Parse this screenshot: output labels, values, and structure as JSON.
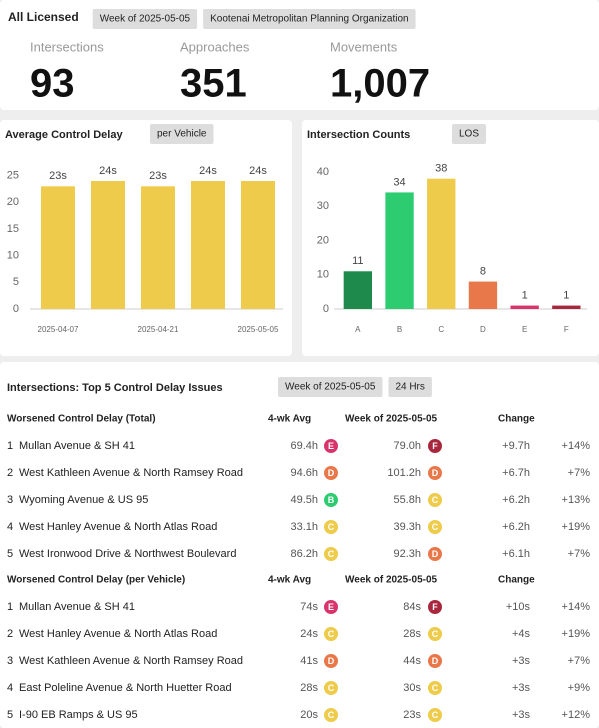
{
  "header": {
    "title": "All Licensed",
    "tags": [
      "Week of 2025-05-05",
      "Kootenai Metropolitan Planning Organization"
    ]
  },
  "kpis": [
    {
      "label": "Intersections",
      "value": "93"
    },
    {
      "label": "Approaches",
      "value": "351"
    },
    {
      "label": "Movements",
      "value": "1,007"
    }
  ],
  "chart_data": [
    {
      "type": "bar",
      "title": "Average Control Delay",
      "tag": "per Vehicle",
      "categories": [
        "2025-04-07",
        null,
        "2025-04-21",
        null,
        "2025-05-05"
      ],
      "values": [
        23,
        24,
        23,
        24,
        24
      ],
      "value_labels": [
        "23s",
        "24s",
        "23s",
        "24s",
        "24s"
      ],
      "colors": [
        "#eecb4a",
        "#eecb4a",
        "#eecb4a",
        "#eecb4a",
        "#eecb4a"
      ],
      "ylim": [
        0,
        27
      ],
      "yticks": [
        0,
        5,
        10,
        15,
        20,
        25
      ]
    },
    {
      "type": "bar",
      "title": "Intersection Counts",
      "tag": "LOS",
      "categories": [
        "A",
        "B",
        "C",
        "D",
        "E",
        "F"
      ],
      "values": [
        11,
        34,
        38,
        8,
        1,
        1
      ],
      "colors": [
        "#1e8a4c",
        "#2ecc71",
        "#eecb4a",
        "#e8784a",
        "#d9336b",
        "#a8273c"
      ],
      "ylim": [
        0,
        42
      ],
      "yticks": [
        0,
        10,
        20,
        30,
        40
      ]
    }
  ],
  "table": {
    "title": "Intersections: Top 5 Control Delay Issues",
    "tags": [
      "Week of 2025-05-05",
      "24 Hrs"
    ],
    "grade_colors": {
      "A": "#1e8a4c",
      "B": "#2ecc71",
      "C": "#eecb4a",
      "D": "#e8784a",
      "E": "#d9336b",
      "F": "#a8273c"
    },
    "groups": [
      {
        "header": [
          "Worsened Control Delay (Total)",
          "4-wk Avg",
          "Week of 2025-05-05",
          "Change"
        ],
        "rows": [
          [
            "1",
            "Mullan Avenue & SH 41",
            "69.4h",
            "E",
            "79.0h",
            "F",
            "+9.7h",
            "+14%"
          ],
          [
            "2",
            "West Kathleen Avenue & North Ramsey Road",
            "94.6h",
            "D",
            "101.2h",
            "D",
            "+6.7h",
            "+7%"
          ],
          [
            "3",
            "Wyoming Avenue & US 95",
            "49.5h",
            "B",
            "55.8h",
            "C",
            "+6.2h",
            "+13%"
          ],
          [
            "4",
            "West Hanley Avenue & North Atlas Road",
            "33.1h",
            "C",
            "39.3h",
            "C",
            "+6.2h",
            "+19%"
          ],
          [
            "5",
            "West Ironwood Drive & Northwest Boulevard",
            "86.2h",
            "C",
            "92.3h",
            "D",
            "+6.1h",
            "+7%"
          ]
        ]
      },
      {
        "header": [
          "Worsened Control Delay (per Vehicle)",
          "4-wk Avg",
          "Week of 2025-05-05",
          "Change"
        ],
        "rows": [
          [
            "1",
            "Mullan Avenue & SH 41",
            "74s",
            "E",
            "84s",
            "F",
            "+10s",
            "+14%"
          ],
          [
            "2",
            "West Hanley Avenue & North Atlas Road",
            "24s",
            "C",
            "28s",
            "C",
            "+4s",
            "+19%"
          ],
          [
            "3",
            "West Kathleen Avenue & North Ramsey Road",
            "41s",
            "D",
            "44s",
            "D",
            "+3s",
            "+7%"
          ],
          [
            "4",
            "East Poleline Avenue & North Huetter Road",
            "28s",
            "C",
            "30s",
            "C",
            "+3s",
            "+9%"
          ],
          [
            "5",
            "I-90 EB Ramps & US 95",
            "20s",
            "C",
            "23s",
            "C",
            "+3s",
            "+12%"
          ]
        ]
      }
    ]
  }
}
